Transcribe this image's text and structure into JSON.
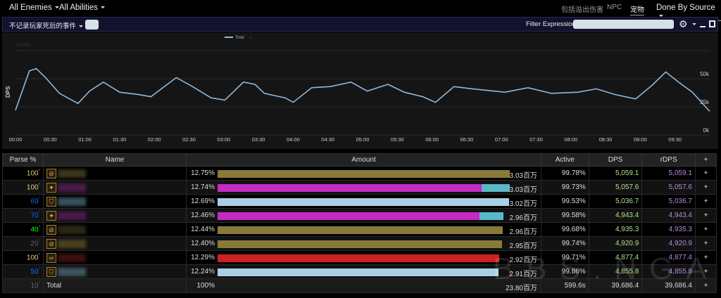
{
  "topbar": {
    "enemies": "All Enemies",
    "abilities": "All Abilities",
    "toggles": [
      {
        "label": "包括溢出伤害",
        "on": false
      },
      {
        "label": "NPC",
        "on": false
      },
      {
        "label": "宠物",
        "on": true
      }
    ],
    "source": "Done By Source"
  },
  "subbar": {
    "option": "不记录玩家死后的事件",
    "filter_label": "Filter Expression:",
    "filter_value": "",
    "gear_icon": "gear-icon"
  },
  "chart_data": {
    "type": "line",
    "title": "",
    "legend": [
      "Total",
      "--"
    ],
    "zoom_label": "Zoom",
    "ylabel": "DPS",
    "ylim": [
      0,
      75000
    ],
    "yticks": [
      "0k",
      "25k",
      "50k"
    ],
    "yvalues": [
      0,
      25000,
      50000
    ],
    "xlabels": [
      "00:00",
      "00:30",
      "01:00",
      "01:30",
      "02:00",
      "02:30",
      "03:00",
      "03:30",
      "04:00",
      "04:30",
      "05:00",
      "05:30",
      "06:00",
      "06:30",
      "07:00",
      "07:30",
      "08:00",
      "08:30",
      "09:00",
      "09:30"
    ],
    "xlim": [
      0,
      600
    ],
    "series": [
      {
        "name": "Total",
        "color": "#8fb8de",
        "x": [
          0,
          12,
          18,
          26,
          38,
          54,
          64,
          76,
          90,
          106,
          117,
          139,
          153,
          169,
          181,
          197,
          207,
          215,
          233,
          240,
          256,
          272,
          290,
          304,
          322,
          336,
          352,
          363,
          379,
          395,
          423,
          443,
          463,
          486,
          502,
          518,
          536,
          550,
          562,
          573,
          585,
          600
        ],
        "y": [
          22000,
          57000,
          59000,
          51000,
          37000,
          28000,
          39000,
          47000,
          38000,
          36000,
          34000,
          51000,
          43000,
          33000,
          31000,
          47000,
          45000,
          37000,
          33000,
          29000,
          42000,
          43000,
          47000,
          39000,
          45000,
          38000,
          34000,
          29000,
          43000,
          41000,
          38000,
          42000,
          37000,
          38000,
          41000,
          36000,
          32000,
          44000,
          56000,
          47000,
          38000,
          21000
        ]
      }
    ]
  },
  "table": {
    "headers": [
      "Parse %",
      "Name",
      "Amount",
      "Active",
      "DPS",
      "rDPS",
      "+"
    ],
    "rows": [
      {
        "parse": "100",
        "parse_color": "#e5cc80",
        "icon": "⊘",
        "name_color": "#3a3418",
        "pct": "12.75%",
        "fill": 1.0,
        "segments": [
          {
            "color": "#8a7a3a",
            "frac": 1
          }
        ],
        "amount": "3.03百万",
        "active": "99.78%",
        "dps": "5,059.1",
        "rdps": "5,059.1"
      },
      {
        "parse": "100",
        "parse_color": "#e5cc80",
        "icon": "✦",
        "name_color": "#4a1a4a",
        "pct": "12.74%",
        "fill": 0.999,
        "segments": [
          {
            "color": "#c42ac4",
            "frac": 0.905
          },
          {
            "color": "#5ab8c8",
            "frac": 0.095
          }
        ],
        "amount": "3.03百万",
        "active": "99.73%",
        "dps": "5,057.6",
        "rdps": "5,057.6"
      },
      {
        "parse": "69",
        "parse_color": "#0070ff",
        "icon": "⛉",
        "name_color": "#38505a",
        "pct": "12.69%",
        "fill": 0.997,
        "segments": [
          {
            "color": "#a8d0e4",
            "frac": 1
          }
        ],
        "amount": "3.02百万",
        "active": "99.53%",
        "dps": "5,036.7",
        "rdps": "5,036.7"
      },
      {
        "parse": "70",
        "parse_color": "#0070ff",
        "icon": "✦",
        "name_color": "#4a1a4a",
        "pct": "12.46%",
        "fill": 0.978,
        "segments": [
          {
            "color": "#c42ac4",
            "frac": 0.916
          },
          {
            "color": "#5ab8c8",
            "frac": 0.084
          }
        ],
        "amount": "2.96百万",
        "active": "99.58%",
        "dps": "4,943.4",
        "rdps": "4,943.4"
      },
      {
        "parse": "40",
        "parse_color": "#1eff00",
        "icon": "⊘",
        "name_color": "#2a2814",
        "pct": "12.44%",
        "fill": 0.976,
        "segments": [
          {
            "color": "#8a7a3a",
            "frac": 1
          }
        ],
        "amount": "2.96百万",
        "active": "99.68%",
        "dps": "4,935.3",
        "rdps": "4,935.3"
      },
      {
        "parse": "20",
        "parse_color": "#666666",
        "icon": "⊘",
        "name_color": "#4a4020",
        "pct": "12.40%",
        "fill": 0.973,
        "segments": [
          {
            "color": "#8a7a3a",
            "frac": 1
          }
        ],
        "amount": "2.95百万",
        "active": "99.74%",
        "dps": "4,920.9",
        "rdps": "4,920.9"
      },
      {
        "parse": "100",
        "parse_color": "#e5cc80",
        "icon": "∞",
        "name_color": "#3a1010",
        "pct": "12.29%",
        "fill": 0.964,
        "segments": [
          {
            "color": "#cc2222",
            "frac": 1
          }
        ],
        "amount": "2.92百万",
        "active": "99.71%",
        "dps": "4,877.4",
        "rdps": "4,877.4"
      },
      {
        "parse": "50",
        "parse_color": "#0070ff",
        "icon": "⛉",
        "name_color": "#40545e",
        "pct": "12.24%",
        "fill": 0.961,
        "segments": [
          {
            "color": "#a8d0e4",
            "frac": 1
          }
        ],
        "amount": "2.91百万",
        "active": "99.86%",
        "dps": "4,855.8",
        "rdps": "4,855.8"
      }
    ],
    "total": {
      "parse": "10",
      "parse_color": "#666666",
      "name": "Total",
      "pct": "100%",
      "amount": "23.80百万",
      "active": "599.6s",
      "dps": "39,686.4",
      "rdps": "39,686.4"
    },
    "plus": "+"
  },
  "watermark": "BBS.NGA.CN"
}
